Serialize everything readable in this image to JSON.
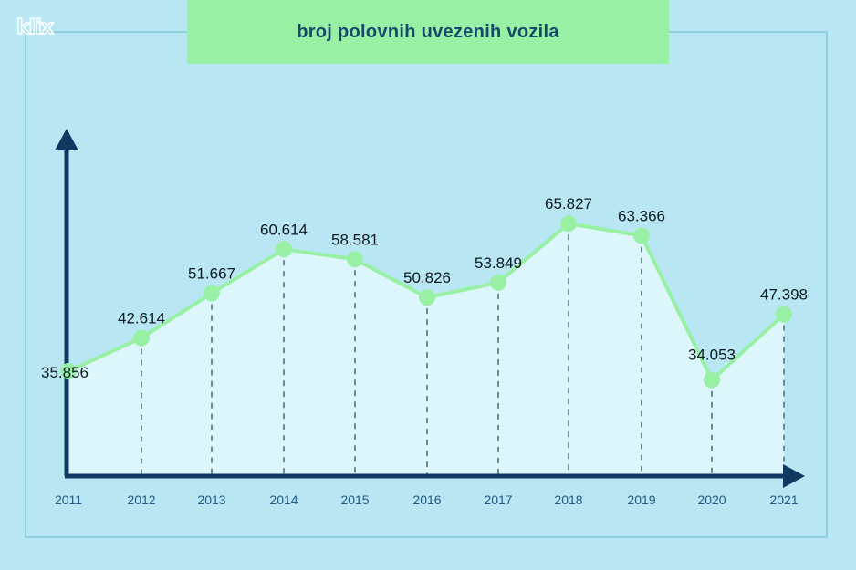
{
  "logo": "klix",
  "chart_data": {
    "type": "line",
    "title": "broj polovnih uvezenih vozila",
    "categories": [
      "2011",
      "2012",
      "2013",
      "2014",
      "2015",
      "2016",
      "2017",
      "2018",
      "2019",
      "2020",
      "2021"
    ],
    "values": [
      35856,
      42614,
      51667,
      60614,
      58581,
      50826,
      53849,
      65827,
      63366,
      34053,
      47398
    ],
    "labels": [
      "35.856",
      "42.614",
      "51.667",
      "60.614",
      "58.581",
      "50.826",
      "53.849",
      "65.827",
      "63.366",
      "34.053",
      "47.398"
    ],
    "xlabel": "",
    "ylabel": "",
    "grid": false,
    "legend": "none",
    "colors": {
      "line": "#98f0a4",
      "area": "#dcf6fb",
      "axis": "#0e3a62",
      "drop_lines": "#6b8a9a",
      "title_bg": "#98f0a4"
    }
  }
}
